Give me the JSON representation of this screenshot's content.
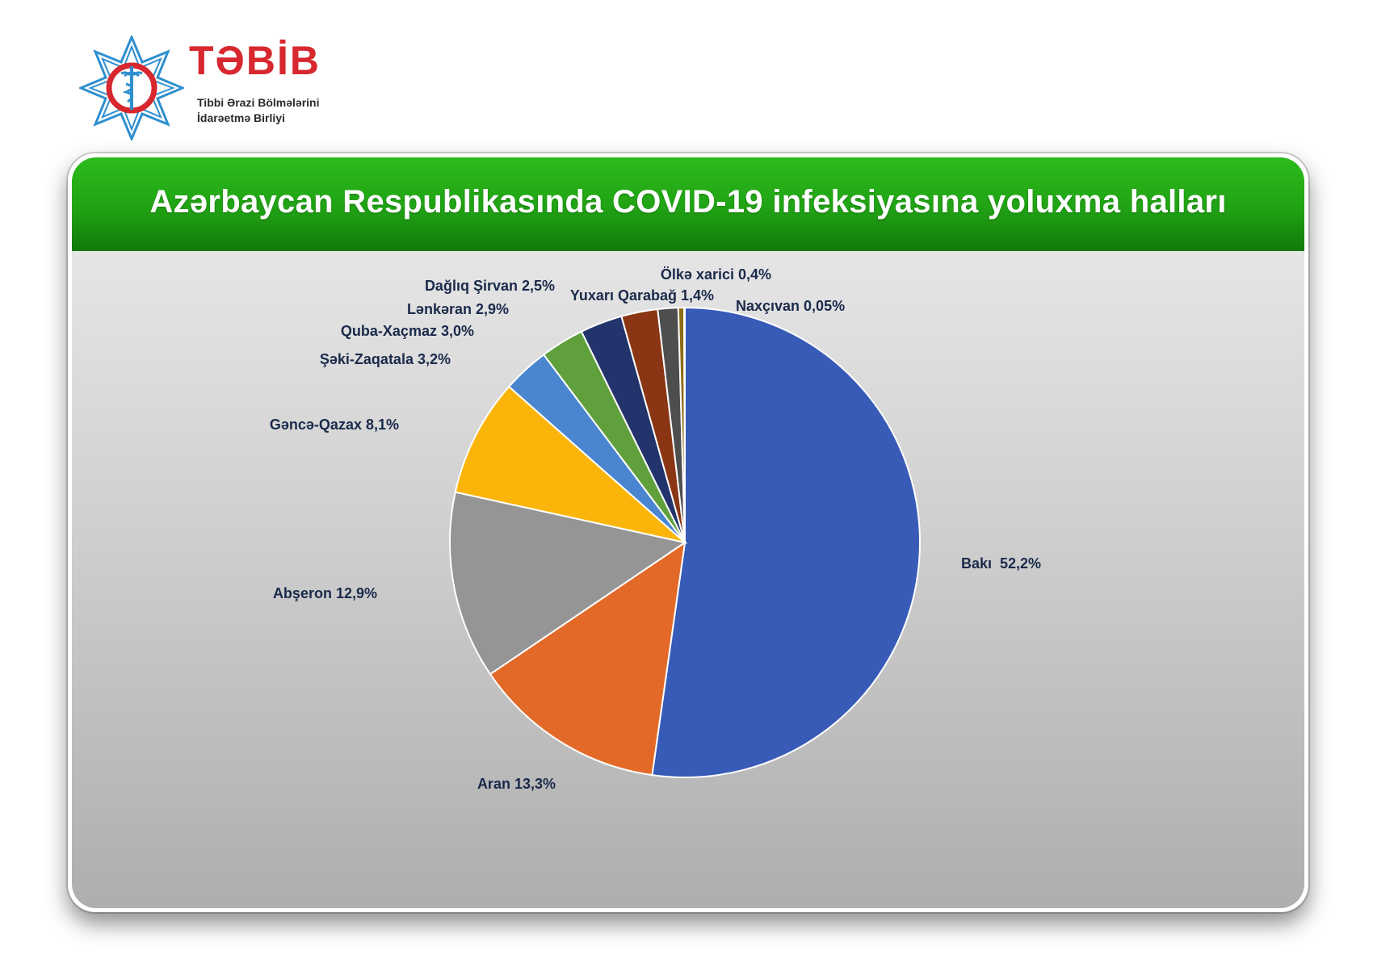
{
  "logo": {
    "brand": "TƏBİB",
    "subtitle_line1": "Tibbi Ərazi Bölmələrini",
    "subtitle_line2": "İdarəetmə Birliyi",
    "icon": "medical-star-emblem-icon"
  },
  "colors": {
    "header_green": "#22a516",
    "brand_red": "#d7282f",
    "label_navy": "#1a2a4a"
  },
  "chart_data": {
    "type": "pie",
    "title": "Azərbaycan Respublikasında COVID-19 infeksiyasına yoluxma halları",
    "slices": [
      {
        "name": "Bakı",
        "value": 52.2,
        "label": "Bakı  52,2%",
        "color": "#385bb7"
      },
      {
        "name": "Aran",
        "value": 13.3,
        "label": "Aran 13,3%",
        "color": "#e36928"
      },
      {
        "name": "Abşeron",
        "value": 12.9,
        "label": "Abşeron 12,9%",
        "color": "#959595"
      },
      {
        "name": "Gəncə-Qazax",
        "value": 8.1,
        "label": "Gəncə-Qazax 8,1%",
        "color": "#fbb50a"
      },
      {
        "name": "Şəki-Zaqatala",
        "value": 3.2,
        "label": "Şəki-Zaqatala 3,2%",
        "color": "#4a86cf"
      },
      {
        "name": "Quba-Xaçmaz",
        "value": 3.0,
        "label": "Quba-Xaçmaz 3,0%",
        "color": "#5fa03c"
      },
      {
        "name": "Lənkəran",
        "value": 2.9,
        "label": "Lənkəran 2,9%",
        "color": "#22346b"
      },
      {
        "name": "Dağlıq Şirvan",
        "value": 2.5,
        "label": "Dağlıq Şirvan 2,5%",
        "color": "#8a3614"
      },
      {
        "name": "Yuxarı Qarabağ",
        "value": 1.4,
        "label": "Yuxarı Qarabağ 1,4%",
        "color": "#4e4e4e"
      },
      {
        "name": "Ölkə xarici",
        "value": 0.4,
        "label": "Ölkə xarici 0,4%",
        "color": "#8d6c12"
      },
      {
        "name": "Naxçıvan",
        "value": 0.05,
        "label": "Naxçıvan 0,05%",
        "color": "#30476b"
      }
    ]
  }
}
